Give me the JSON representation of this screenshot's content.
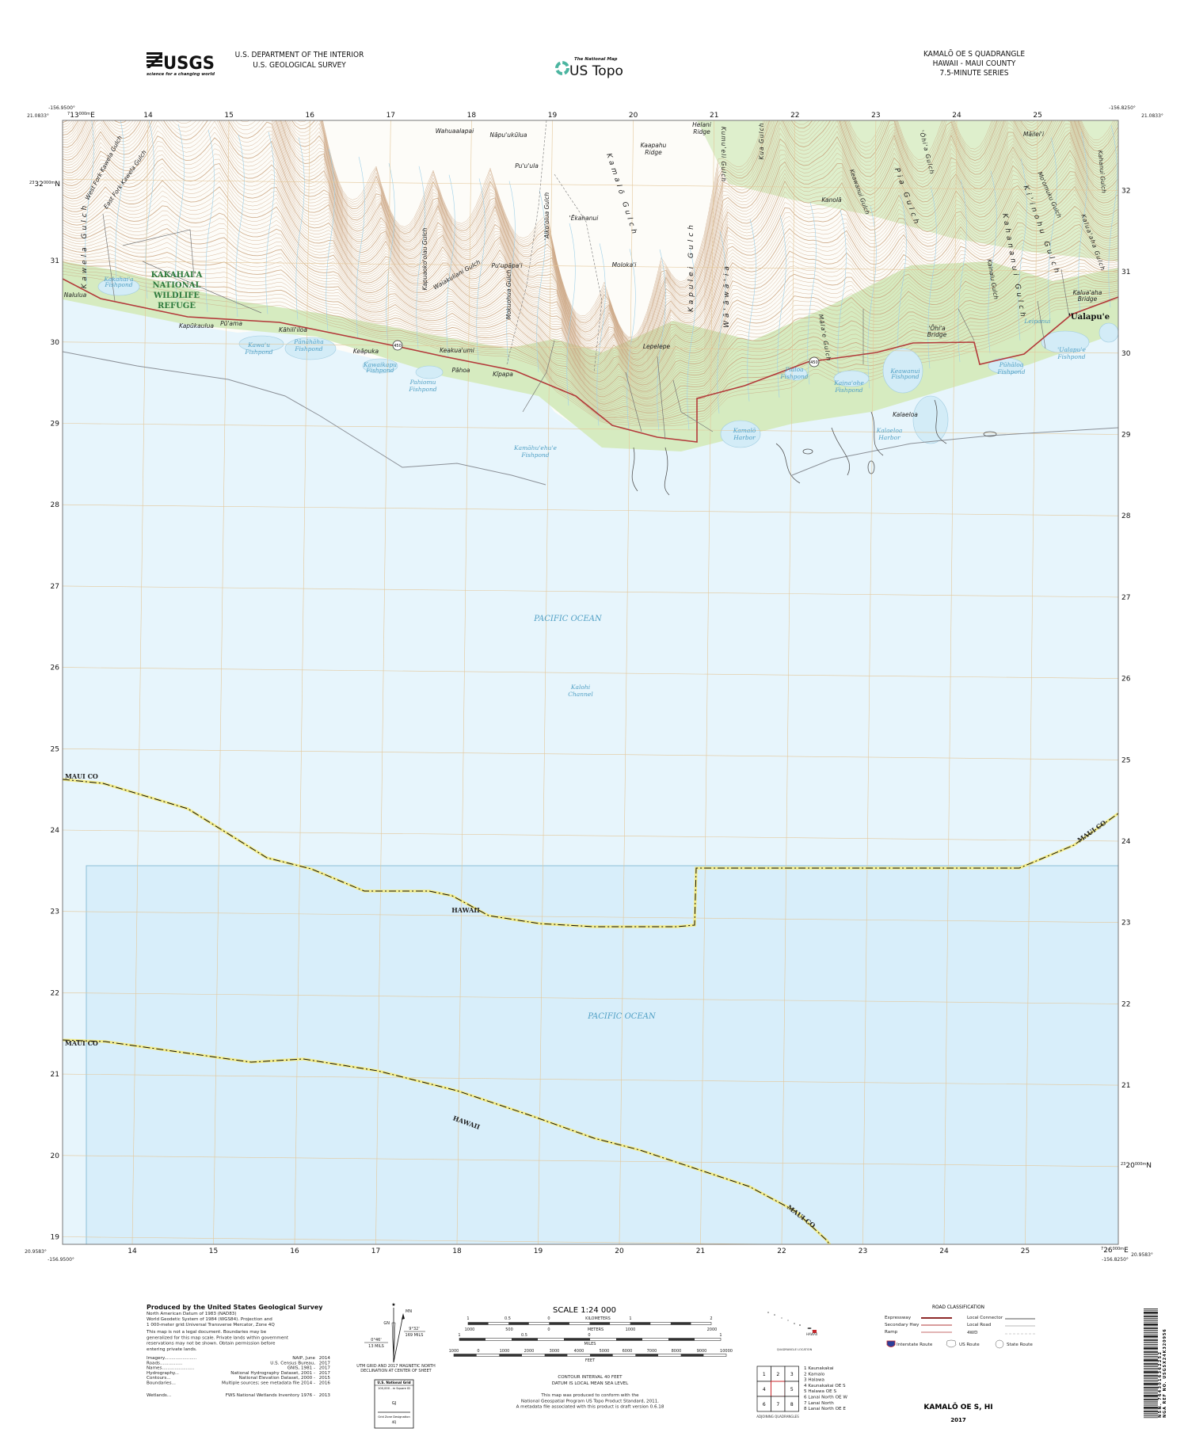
{
  "header": {
    "usgs_logo": "USGS",
    "usgs_tagline": "science for a changing world",
    "agency_line1": "U.S. DEPARTMENT OF THE INTERIOR",
    "agency_line2": "U.S. GEOLOGICAL SURVEY",
    "national_map": "The National Map",
    "us_topo": "US Topo",
    "quad_title": "KAMALŌ OE S QUADRANGLE",
    "quad_state": "HAWAII - MAUI COUNTY",
    "quad_series": "7.5-MINUTE SERIES"
  },
  "colors": {
    "land": "#fdfcf8",
    "vegetation": "#d6ebc0",
    "ocean": "#e7f5fc",
    "ocean_shaded": "#d8eefa",
    "contour": "#c9a27e",
    "road_state": "#b33a3a",
    "water_label": "#4f9fc4",
    "refuge_label": "#2d7a3c",
    "grid": "#e3c79a"
  },
  "map": {
    "corners": {
      "top_left_lon": "-156.9500°",
      "top_left_lat": "21.0833°",
      "top_right_lon": "-156.8250°",
      "top_right_lat": "21.0833°",
      "bottom_left_lon": "-156.9500°",
      "bottom_left_lat": "20.9583°",
      "bottom_right_lon": "-156.8250°",
      "bottom_right_lat": "20.9583°"
    },
    "grid": {
      "eastings_top": [
        "14",
        "15",
        "16",
        "17",
        "18",
        "19",
        "20",
        "21",
        "22",
        "23",
        "24",
        "25"
      ],
      "eastings_bottom": [
        "14",
        "15",
        "16",
        "17",
        "18",
        "19",
        "20",
        "21",
        "22",
        "23",
        "24",
        "25"
      ],
      "northings_left": [
        "31",
        "30",
        "29",
        "28",
        "27",
        "26",
        "25",
        "24",
        "23",
        "22",
        "21",
        "20",
        "19"
      ],
      "northings_right": [
        "32",
        "31",
        "30",
        "29",
        "28",
        "27",
        "26",
        "25",
        "24",
        "23",
        "22",
        "21"
      ],
      "full_easting_top": {
        "pre": "7",
        "main": "13",
        "sup": "000m",
        "end": "E"
      },
      "full_easting_bottom": {
        "pre": "7",
        "main": "26",
        "sup": "000m",
        "end": "E"
      },
      "full_northing_left": {
        "pre": "23",
        "main": "32",
        "sup": "000m",
        "end": "N"
      },
      "full_northing_right": {
        "pre": "23",
        "main": "20",
        "sup": "000m",
        "end": "N"
      }
    },
    "road_shield": "450",
    "labels": {
      "west_fork_kawela": "West Fork Kawela Gulch",
      "east_fork_kawela": "East Fork Kawela Gulch",
      "kawela_gulch": "Kawela Gulch",
      "refuge_1": "KAKAHAI'A",
      "refuge_2": "NATIONAL",
      "refuge_3": "WILDLIFE",
      "refuge_4": "REFUGE",
      "nalulua": "Nalulua",
      "kakahaia_pond_1": "Kakahai'a",
      "kakahaia_pond_2": "Fishpond",
      "kapukaulua": "Kapūkaulua",
      "puama": "Pū'ama",
      "kahililoa": "Kāhili'iloa",
      "kawau_1": "Kawa'u",
      "kawau_2": "Fishpond",
      "panahaha_1": "Pānāhāha",
      "panahaha_2": "Fishpond",
      "keapuka": "Keāpuka",
      "kawaikapu_1": "Kawaikapu",
      "kawaikapu_2": "Fishpond",
      "kapuaokoolau": "Kapuaoko'olau Gulch",
      "wahuaalapai": "Wahuaalapai",
      "napuukulua": "Nāpu'ukūlua",
      "puuula": "Pu'u'ula",
      "aikoolua": "'Aiko'olua Gulch",
      "ekahanui": "'Ēkahanui",
      "kamalo_gulch": "Kamalō Gulch",
      "kaapahu_1": "Kaapahu",
      "kaapahu_2": "Ridge",
      "helani_1": "Helani",
      "helani_2": "Ridge",
      "kumueli": "Kumu'eli Gulch",
      "kua_gulch": "Kua Gulch",
      "waiakuliani": "Waiakuliani Gulch",
      "puupapai": "Pu'upāpa'i",
      "mokuohua": "Mokuohua Gulch",
      "molokai": "Moloka'i",
      "kapulei": "Kapulei Gulch",
      "waawaaia": "Wā'āwā'ia",
      "keakuaumi": "Keakua'umi",
      "pahoa": "Pāhoa",
      "kipapa": "Kīpapa",
      "pahiomu_1": "Pahiomu",
      "pahiomu_2": "Fishpond",
      "kamahuehue_1": "Kamāhu'ehu'e",
      "kamahuehue_2": "Fishpond",
      "lepelepe": "Lepelepe",
      "kamalo_harbor_1": "Kamalō",
      "kamalo_harbor_2": "Harbor",
      "pialoa_1": "Pialoa",
      "pialoa_2": "Fishpond",
      "maileii": "Māilei'i",
      "kanola": "Kanolā",
      "keawanui_gulch": "Keawanui Gulch",
      "pia_gulch": "Pia Gulch",
      "ohia_gulch": "'Ōhi'a Gulch",
      "moomuku": "Mo'omuku Gulch",
      "kiinohu": "Ki'inohu Gulch",
      "kahananui": "Kahananui Gulch",
      "kainalu": "Kainalu Gulch",
      "kaluaaha_gulch": "Kalua'aha Gulch",
      "kahanui": "Kahanui Gulch",
      "kaluaaha_bridge_1": "Kalua'aha",
      "kaluaaha_bridge_2": "Bridge",
      "ualapue": "'Ualapu'e",
      "leipanui": "Leipanui",
      "ohia_bridge_1": "'Ōhi'a",
      "ohia_bridge_2": "Bridge",
      "malae_gulch": "Māla'e Gulch",
      "ualapue_pond_1": "'Ualapu'e",
      "ualapue_pond_2": "Fishpond",
      "puhaloa_1": "Pūhāloa",
      "puhaloa_2": "Fishpond",
      "keawanui_pond_1": "Keawanui",
      "keawanui_pond_2": "Fishpond",
      "kainaohe_1": "Kaina'ohe",
      "kainaohe_2": "Fishpond",
      "kalaeloa": "Kalaeloa",
      "kalaeloa_harbor_1": "Kalaeloa",
      "kalaeloa_harbor_2": "Harbor",
      "pacific_ocean_1": "PACIFIC OCEAN",
      "kalohi_1": "Kalohi",
      "kalohi_2": "Channel",
      "pacific_ocean_2": "PACIFIC OCEAN",
      "maui_co_1": "MAUI CO",
      "maui_co_2": "MAUI CO",
      "maui_co_3": "MAUI CO",
      "maui_co_4": "MAUI CO",
      "hawaii_1": "HAWAII",
      "hawaii_2": "HAWAII"
    }
  },
  "footer": {
    "producer": "Produced by the United States Geological Survey",
    "datum_lines": [
      "North American Datum of 1983 (NAD83)",
      "World Geodetic System of 1984 (WGS84).  Projection and",
      "1 000-meter grid:Universal Transverse Mercator, Zone 4Q"
    ],
    "disclaimer_lines": [
      "This map is not a legal document. Boundaries may be",
      "generalized for this map scale. Private lands within government",
      "reservations may not be shown. Obtain permission before",
      "entering private lands."
    ],
    "credits": [
      {
        "label": "Imagery",
        "source": "NAIP, June",
        "date": "2014"
      },
      {
        "label": "Roads",
        "source": "U.S. Census Bureau,",
        "date": "2017"
      },
      {
        "label": "Names",
        "source": "GNIS, 1981 -",
        "date": "2017"
      },
      {
        "label": "Hydrography",
        "source": "National Hydrography Dataset, 2001 -",
        "date": "2017"
      },
      {
        "label": "Contours",
        "source": "National Elevation Dataset, 2000 -",
        "date": "2015"
      },
      {
        "label": "Boundaries",
        "source": "Multiple sources; see metadata file 2014 -",
        "date": "2016"
      },
      {
        "label": "Wetlands",
        "source": "FWS National Wetlands Inventory 1976 -",
        "date": "2013"
      }
    ],
    "declination": {
      "mn": "MN",
      "gn": "GN",
      "mn_angle": "9°32'",
      "mn_mils": "169 MILS",
      "gn_angle": "0°46'",
      "gn_mils": "13 MILS",
      "caption_1": "UTM GRID AND 2017 MAGNETIC NORTH",
      "caption_2": "DECLINATION AT CENTER OF SHEET"
    },
    "usng": {
      "title": "U.S. National Grid",
      "square_label": "100,000 - m Square ID",
      "square_id": "GJ",
      "zone_label": "Grid Zone Designation",
      "zone_id": "4Q"
    },
    "scale": {
      "title": "SCALE 1:24 000",
      "km_labels": [
        "1",
        "0.5",
        "0",
        "1",
        "2"
      ],
      "km_unit": "KILOMETERS",
      "m_labels": [
        "1000",
        "500",
        "0",
        "1000",
        "2000"
      ],
      "m_unit": "METERS",
      "mi_labels": [
        "1",
        "0.5",
        "0",
        "1"
      ],
      "mi_unit": "MILES",
      "ft_labels": [
        "1000",
        "0",
        "1000",
        "2000",
        "3000",
        "4000",
        "5000",
        "6000",
        "7000",
        "8000",
        "9000",
        "10000"
      ],
      "ft_unit": "FEET"
    },
    "contour_1": "CONTOUR INTERVAL 40 FEET",
    "contour_2": "DATUM IS LOCAL MEAN SEA LEVEL",
    "standard_lines": [
      "This map was produced to conform with the",
      "National Geospatial Program US Topo Product Standard, 2011.",
      "A metadata file associated with this product is draft version 0.6.18"
    ],
    "location": {
      "state": "HAWAII",
      "caption": "QUADRANGLE LOCATION"
    },
    "adjoining": {
      "cells": [
        "1",
        "2",
        "3",
        "4",
        "",
        "5",
        "6",
        "7",
        "8"
      ],
      "names": [
        "1 Kaunakakai",
        "2 Kamalo",
        "3 Halawa",
        "4 Kaunakakai OE S",
        "5 Halawa OE S",
        "6 Lanai North OE W",
        "7 Lanai North",
        "8 Lanai North OE E"
      ],
      "caption": "ADJOINING QUADRANGLES"
    },
    "roads": {
      "title": "ROAD CLASSIFICATION",
      "expressway": "Expressway",
      "secondary": "Secondary Hwy",
      "ramp": "Ramp",
      "local_connector": "Local Connector",
      "local_road": "Local Road",
      "fwd": "4WD",
      "interstate": "Interstate Route",
      "us_route": "US Route",
      "state_route": "State Route"
    },
    "sheet_name": "KAMALŌ OE S,  HI",
    "year": "2017",
    "nsn": "NSN. 7643016362252",
    "nga_ref": "NGA REF NO. USGSX24K320956"
  }
}
